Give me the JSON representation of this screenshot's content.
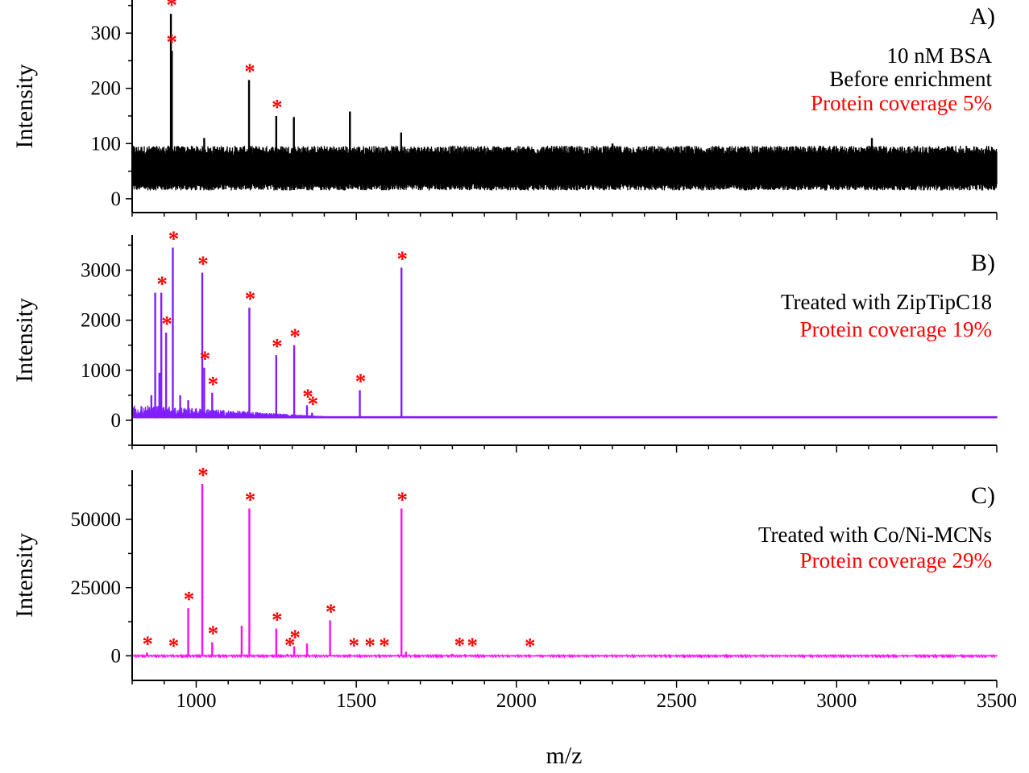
{
  "chart_data": [
    {
      "type": "line",
      "panel": "A)",
      "xlabel": "m/z",
      "ylabel": "Intensity",
      "xlim": [
        800,
        3500
      ],
      "ylim": [
        -25,
        360
      ],
      "yticks": [
        0,
        100,
        200,
        300
      ],
      "xticks": [
        1000,
        1500,
        2000,
        2500,
        3000,
        3500
      ],
      "color": "#000000",
      "baseline": {
        "mean": 55,
        "noise_low": 25,
        "noise_high": 90
      },
      "peaks": [
        {
          "x": 921,
          "y": 335
        },
        {
          "x": 924,
          "y": 268
        },
        {
          "x": 1165,
          "y": 215
        },
        {
          "x": 1250,
          "y": 150
        },
        {
          "x": 1305,
          "y": 148
        },
        {
          "x": 1480,
          "y": 158
        },
        {
          "x": 1640,
          "y": 120
        },
        {
          "x": 1025,
          "y": 110
        },
        {
          "x": 2300,
          "y": 100
        },
        {
          "x": 3110,
          "y": 110
        }
      ],
      "marked_peaks": [
        {
          "x": 921,
          "y": 335
        },
        {
          "x": 921,
          "y": 268
        },
        {
          "x": 1165,
          "y": 215
        },
        {
          "x": 1250,
          "y": 150
        }
      ],
      "annotations": [
        "10 nM BSA",
        "Before enrichment",
        "Protein coverage 5%"
      ],
      "annotation_colors": [
        "#000000",
        "#000000",
        "#ff0000"
      ]
    },
    {
      "type": "line",
      "panel": "B)",
      "xlabel": "m/z",
      "ylabel": "Intensity",
      "xlim": [
        800,
        3500
      ],
      "ylim": [
        -500,
        3700
      ],
      "yticks": [
        0,
        1000,
        2000,
        3000
      ],
      "xticks": [
        1000,
        1500,
        2000,
        2500,
        3000,
        3500
      ],
      "color": "#7f1fff",
      "baseline": {
        "mean": 60,
        "noise_low": 30,
        "noise_high": 120
      },
      "peaks": [
        {
          "x": 872,
          "y": 2550
        },
        {
          "x": 891,
          "y": 2550
        },
        {
          "x": 906,
          "y": 1750
        },
        {
          "x": 927,
          "y": 3450
        },
        {
          "x": 1019,
          "y": 2950
        },
        {
          "x": 1025,
          "y": 1050
        },
        {
          "x": 1050,
          "y": 550
        },
        {
          "x": 1166,
          "y": 2250
        },
        {
          "x": 1250,
          "y": 1300
        },
        {
          "x": 1306,
          "y": 1500
        },
        {
          "x": 1346,
          "y": 300
        },
        {
          "x": 1362,
          "y": 150
        },
        {
          "x": 1511,
          "y": 600
        },
        {
          "x": 1641,
          "y": 3050
        },
        {
          "x": 885,
          "y": 950
        },
        {
          "x": 860,
          "y": 500
        },
        {
          "x": 975,
          "y": 400
        },
        {
          "x": 950,
          "y": 500
        }
      ],
      "marked_peaks": [
        {
          "x": 891,
          "y": 2550
        },
        {
          "x": 906,
          "y": 1750
        },
        {
          "x": 927,
          "y": 3450
        },
        {
          "x": 1019,
          "y": 2950
        },
        {
          "x": 1025,
          "y": 1050
        },
        {
          "x": 1050,
          "y": 550
        },
        {
          "x": 1166,
          "y": 2250
        },
        {
          "x": 1250,
          "y": 1300
        },
        {
          "x": 1306,
          "y": 1500
        },
        {
          "x": 1346,
          "y": 300
        },
        {
          "x": 1362,
          "y": 150
        },
        {
          "x": 1511,
          "y": 600
        },
        {
          "x": 1641,
          "y": 3050
        }
      ],
      "annotations": [
        "Treated with ZipTipC18",
        "Protein coverage 19%"
      ],
      "annotation_colors": [
        "#000000",
        "#ff0000"
      ]
    },
    {
      "type": "line",
      "panel": "C)",
      "xlabel": "m/z",
      "ylabel": "Intensity",
      "xlim": [
        800,
        3500
      ],
      "ylim": [
        -9000,
        68000
      ],
      "yticks": [
        0,
        25000,
        50000
      ],
      "xticks": [
        1000,
        1500,
        2000,
        2500,
        3000,
        3500
      ],
      "color": "#ff10f0",
      "baseline": {
        "mean": 0,
        "noise_low": -200,
        "noise_high": 300
      },
      "peaks": [
        {
          "x": 846,
          "y": 1200
        },
        {
          "x": 927,
          "y": 500
        },
        {
          "x": 975,
          "y": 17500
        },
        {
          "x": 1019,
          "y": 63000
        },
        {
          "x": 1050,
          "y": 5000
        },
        {
          "x": 1142,
          "y": 11000
        },
        {
          "x": 1166,
          "y": 54000
        },
        {
          "x": 1250,
          "y": 10000
        },
        {
          "x": 1285,
          "y": 700
        },
        {
          "x": 1306,
          "y": 3500
        },
        {
          "x": 1346,
          "y": 4500
        },
        {
          "x": 1418,
          "y": 13000
        },
        {
          "x": 1480,
          "y": 600
        },
        {
          "x": 1641,
          "y": 54000
        },
        {
          "x": 1655,
          "y": 1500
        },
        {
          "x": 1800,
          "y": 800
        },
        {
          "x": 1840,
          "y": 600
        },
        {
          "x": 2040,
          "y": 400
        }
      ],
      "marked_peaks": [
        {
          "x": 846,
          "y": 1200
        },
        {
          "x": 927,
          "y": 500
        },
        {
          "x": 975,
          "y": 17500
        },
        {
          "x": 1019,
          "y": 63000
        },
        {
          "x": 1050,
          "y": 5000
        },
        {
          "x": 1166,
          "y": 54000
        },
        {
          "x": 1250,
          "y": 10000
        },
        {
          "x": 1290,
          "y": 700
        },
        {
          "x": 1306,
          "y": 3500
        },
        {
          "x": 1418,
          "y": 13000
        },
        {
          "x": 1490,
          "y": 600
        },
        {
          "x": 1540,
          "y": 600
        },
        {
          "x": 1585,
          "y": 600
        },
        {
          "x": 1641,
          "y": 54000
        },
        {
          "x": 1820,
          "y": 800
        },
        {
          "x": 1860,
          "y": 600
        },
        {
          "x": 2040,
          "y": 400
        }
      ],
      "annotations": [
        "Treated with Co/Ni-MCNs",
        "Protein coverage 29%"
      ],
      "annotation_colors": [
        "#000000",
        "#ff0000"
      ]
    }
  ],
  "marker_symbol": "*",
  "marker_color": "#ff0000"
}
